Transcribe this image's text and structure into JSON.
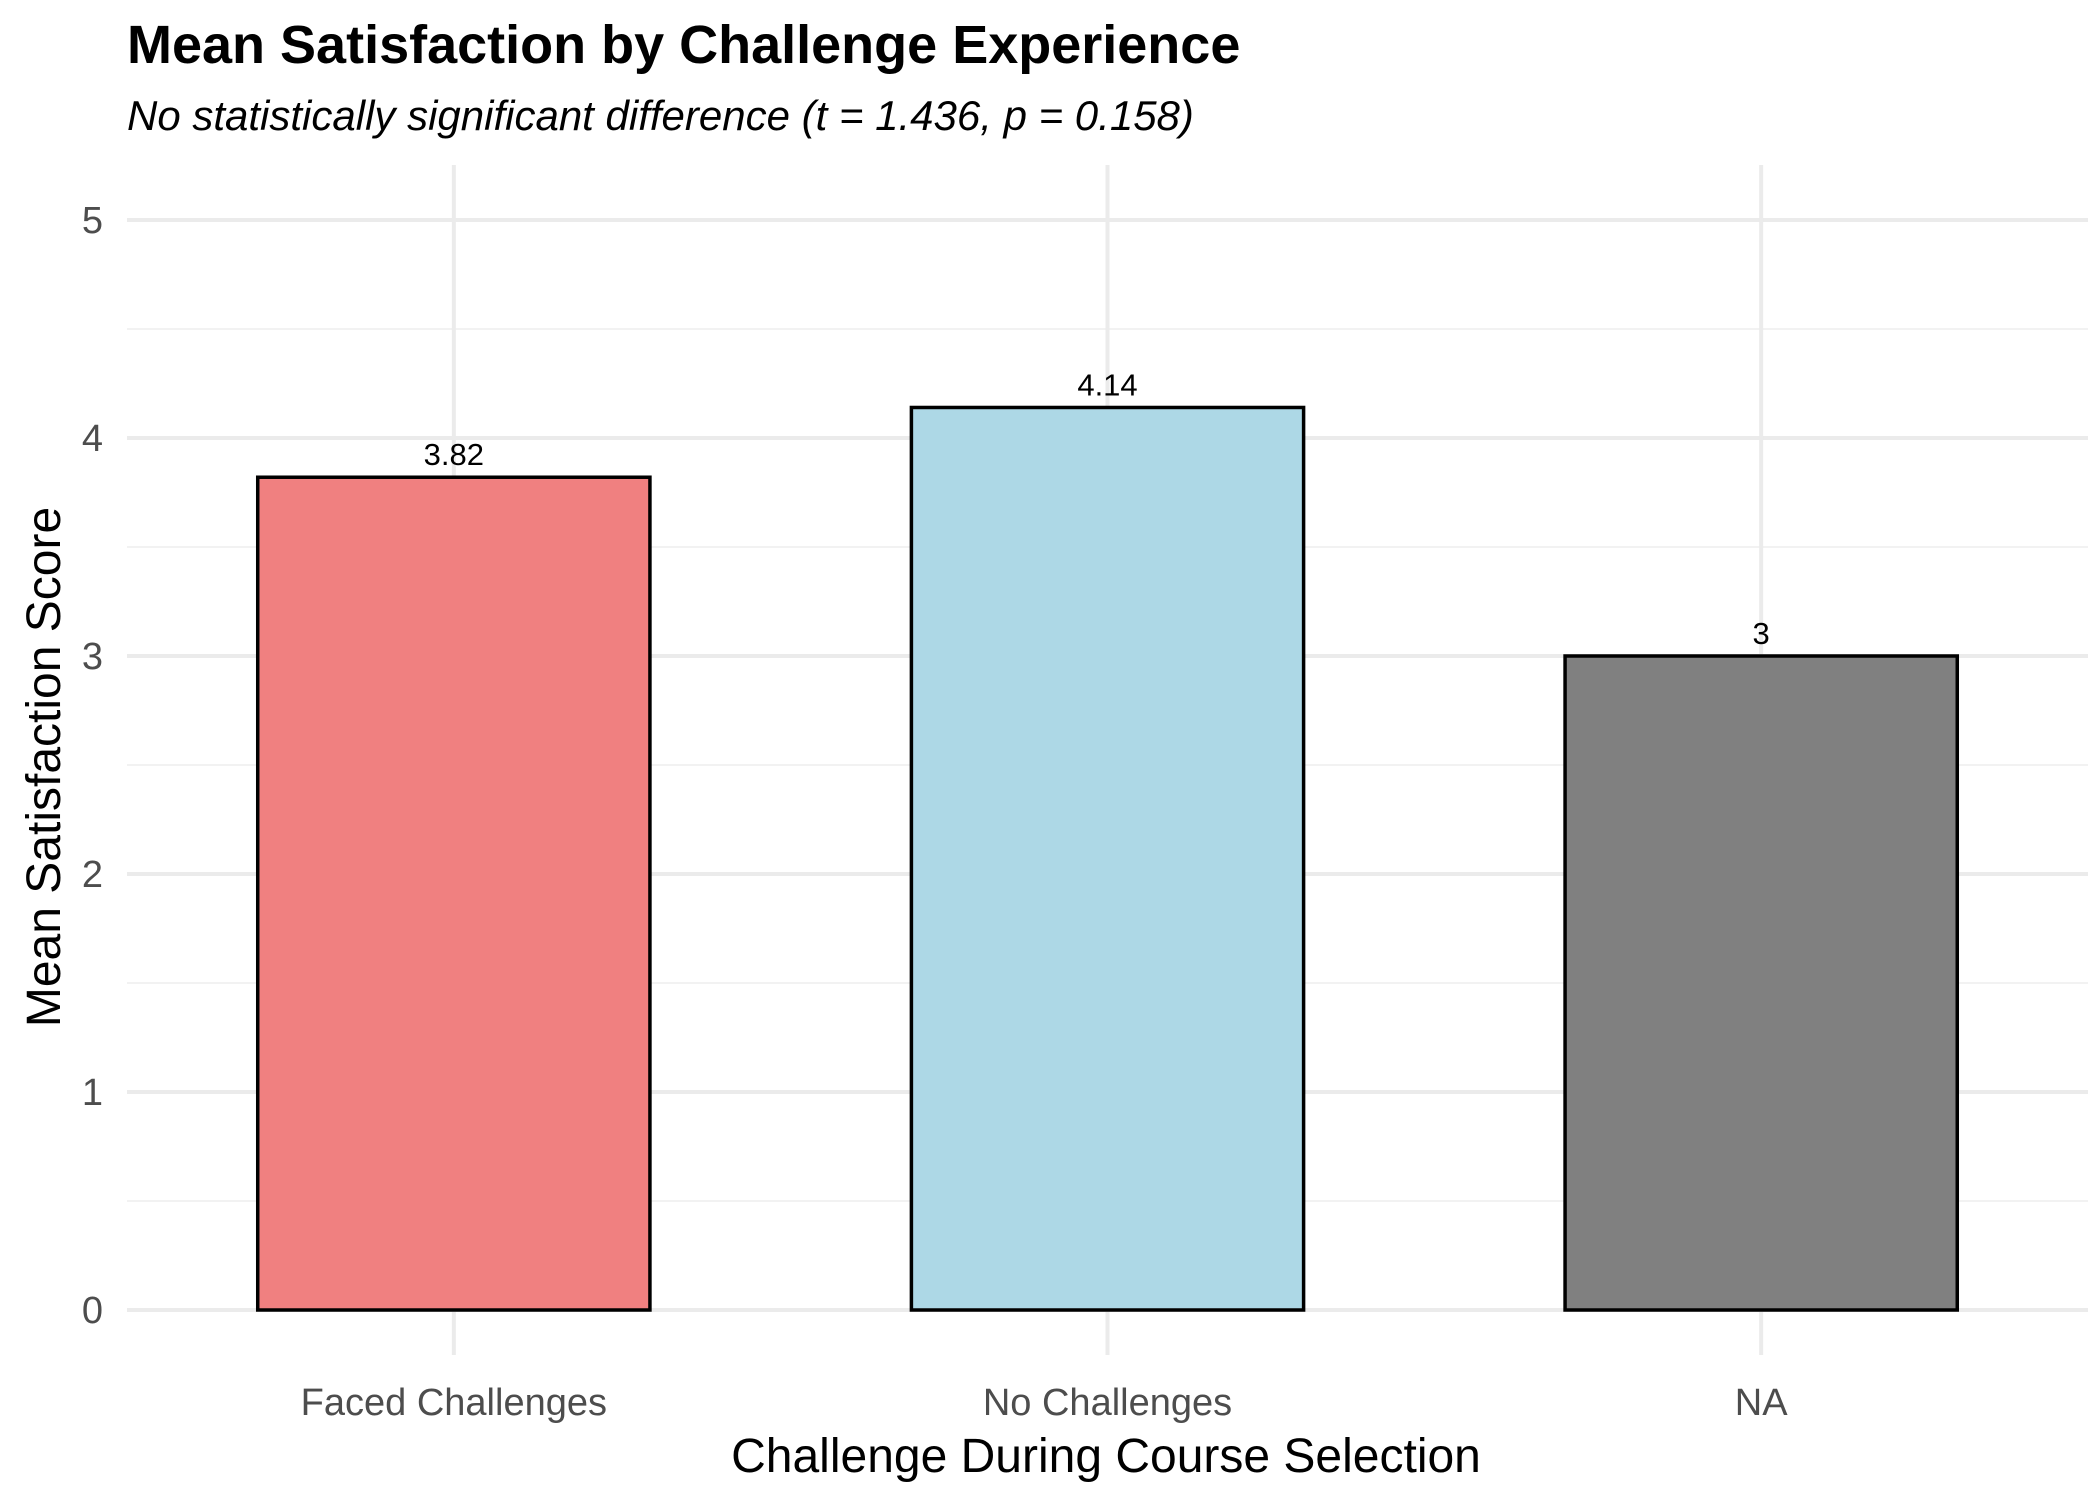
{
  "chart_data": {
    "type": "bar",
    "title": "Mean Satisfaction by Challenge Experience",
    "subtitle": "No statistically significant difference (t = 1.436, p = 0.158)",
    "xlabel": "Challenge During Course Selection",
    "ylabel": "Mean Satisfaction Score",
    "categories": [
      "Faced Challenges",
      "No Challenges",
      "NA"
    ],
    "values": [
      3.82,
      4.14,
      3
    ],
    "value_labels": [
      "3.82",
      "4.14",
      "3"
    ],
    "colors": [
      "#F08080",
      "#ADD8E6",
      "#808080"
    ],
    "ylim": [
      0,
      5
    ],
    "yticks": [
      0,
      1,
      2,
      3,
      4,
      5
    ],
    "ytick_labels": [
      "0",
      "1",
      "2",
      "3",
      "4",
      "5"
    ],
    "grid": true,
    "legend": "none"
  }
}
